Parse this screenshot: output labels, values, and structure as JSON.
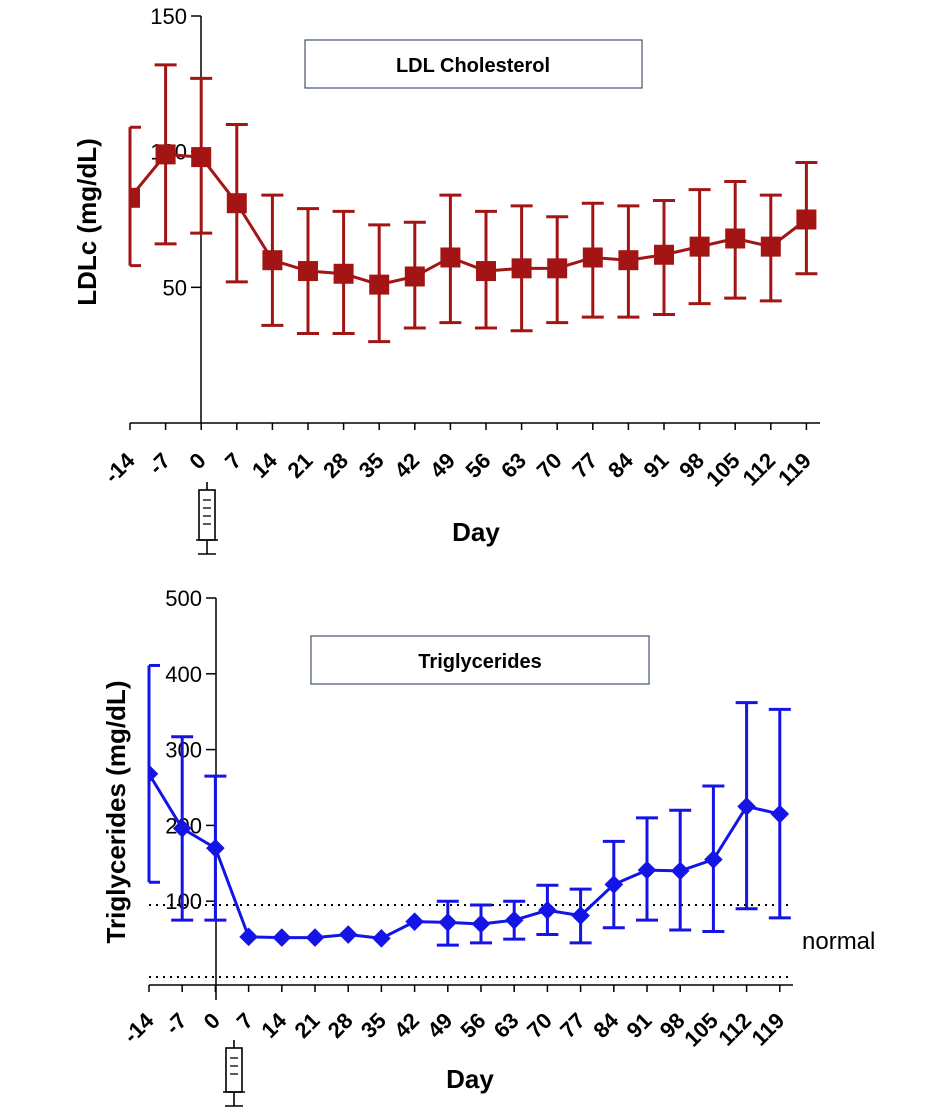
{
  "chart_data": [
    {
      "type": "line",
      "title": "LDL Cholesterol",
      "xlabel": "Day",
      "ylabel": "LDLc (mg/dL)",
      "ylim": [
        0,
        150
      ],
      "yticks": [
        "50",
        "100",
        "150"
      ],
      "color": "#a31515",
      "marker": "square",
      "categories": [
        "-14",
        "-7",
        "0",
        "7",
        "14",
        "21",
        "28",
        "35",
        "42",
        "49",
        "56",
        "63",
        "70",
        "77",
        "84",
        "91",
        "98",
        "105",
        "112",
        "119"
      ],
      "series": [
        {
          "name": "LDLc",
          "values": [
            83,
            99,
            98,
            81,
            60,
            56,
            55,
            51,
            54,
            61,
            56,
            57,
            57,
            61,
            60,
            62,
            65,
            68,
            65,
            75
          ],
          "err_low": [
            58,
            66,
            70,
            52,
            36,
            33,
            33,
            30,
            35,
            37,
            35,
            34,
            37,
            39,
            39,
            40,
            44,
            46,
            45,
            55
          ],
          "err_high": [
            109,
            132,
            127,
            110,
            84,
            79,
            78,
            73,
            74,
            84,
            78,
            80,
            76,
            81,
            80,
            82,
            86,
            89,
            84,
            96
          ]
        }
      ]
    },
    {
      "type": "line",
      "title": "Triglycerides",
      "xlabel": "Day",
      "ylabel": "Triglycerides (mg/dL)",
      "ylim": [
        0,
        500
      ],
      "yticks": [
        "100",
        "200",
        "300",
        "400",
        "500"
      ],
      "color": "#1414e6",
      "marker": "diamond",
      "categories": [
        "-14",
        "-7",
        "0",
        "7",
        "14",
        "21",
        "28",
        "35",
        "42",
        "49",
        "56",
        "63",
        "70",
        "77",
        "84",
        "91",
        "98",
        "105",
        "112",
        "119"
      ],
      "reference_lines": [
        95,
        0
      ],
      "reference_label": "normal",
      "series": [
        {
          "name": "Triglycerides",
          "values": [
            268,
            196,
            170,
            53,
            52,
            52,
            56,
            51,
            73,
            72,
            70,
            75,
            88,
            81,
            122,
            141,
            140,
            155,
            225,
            215
          ],
          "err_low": [
            125,
            75,
            75,
            null,
            null,
            null,
            null,
            null,
            null,
            42,
            45,
            50,
            56,
            45,
            65,
            75,
            62,
            60,
            90,
            78
          ],
          "err_high": [
            411,
            317,
            265,
            null,
            null,
            null,
            null,
            null,
            null,
            100,
            95,
            100,
            121,
            116,
            179,
            210,
            220,
            252,
            362,
            353
          ]
        }
      ]
    }
  ]
}
